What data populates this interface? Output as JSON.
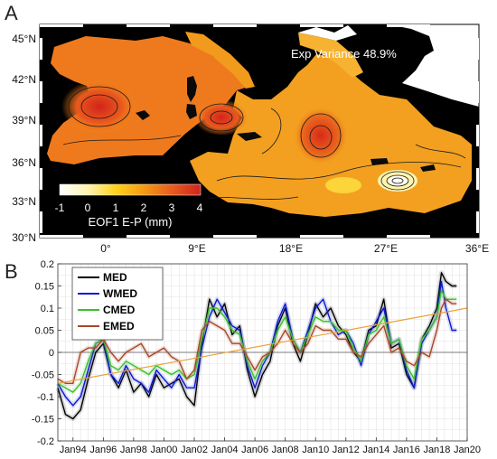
{
  "panels": {
    "a": {
      "letter": "A",
      "variance_label": "Exp Variance 48.9%",
      "colorbar_label": "EOF1 E-P (mm)",
      "colorbar_ticks": [
        "-1",
        "0",
        "1",
        "2",
        "3",
        "4"
      ],
      "lat_ticks": [
        "45°N",
        "42°N",
        "39°N",
        "36°N",
        "33°N",
        "30°N"
      ],
      "lon_ticks": [
        "0°",
        "9°E",
        "18°E",
        "27°E",
        "36°E"
      ],
      "colors": {
        "background": "#000000",
        "land": "#ffffff",
        "colormap": [
          "#ffffff",
          "#fff3b0",
          "#ffd11a",
          "#f59a12",
          "#e85a1e",
          "#d2231b"
        ]
      }
    },
    "b": {
      "letter": "B"
    }
  },
  "chart_data": {
    "type": "line",
    "x_tick_labels": [
      "Jan94",
      "Jan96",
      "Jan98",
      "Jan00",
      "Jan02",
      "Jan04",
      "Jan06",
      "Jan08",
      "Jan10",
      "Jan12",
      "Jan14",
      "Jan16",
      "Jan18",
      "Jan20"
    ],
    "xlim": [
      1993.0,
      2020.0
    ],
    "ylim": [
      -0.2,
      0.2
    ],
    "y_tick_labels": [
      "0.2",
      "0.15",
      "0.1",
      "0.05",
      "0",
      "-0.05",
      "-0.1",
      "-0.15",
      "-0.2"
    ],
    "y_ticks": [
      0.2,
      0.15,
      0.1,
      0.05,
      0,
      -0.05,
      -0.1,
      -0.15,
      -0.2
    ],
    "grid": true,
    "legend_position": "top-left",
    "series": [
      {
        "name": "MED",
        "color": "#000000",
        "x": [
          1993.0,
          1993.5,
          1994.0,
          1994.5,
          1995.0,
          1995.5,
          1996.0,
          1996.5,
          1997.0,
          1997.5,
          1998.0,
          1998.5,
          1999.0,
          1999.5,
          2000.0,
          2000.5,
          2001.0,
          2001.5,
          2002.0,
          2002.5,
          2003.0,
          2003.5,
          2004.0,
          2004.5,
          2005.0,
          2005.5,
          2006.0,
          2006.5,
          2007.0,
          2007.5,
          2008.0,
          2008.5,
          2009.0,
          2009.5,
          2010.0,
          2010.5,
          2011.0,
          2011.5,
          2012.0,
          2012.5,
          2013.0,
          2013.5,
          2014.0,
          2014.5,
          2015.0,
          2015.5,
          2016.0,
          2016.5,
          2017.0,
          2017.5,
          2018.0,
          2018.3,
          2018.6,
          2019.0,
          2019.3
        ],
        "y": [
          -0.08,
          -0.14,
          -0.15,
          -0.13,
          -0.06,
          0.0,
          0.02,
          -0.05,
          -0.08,
          -0.04,
          -0.09,
          -0.07,
          -0.1,
          -0.05,
          -0.08,
          -0.07,
          -0.06,
          -0.1,
          -0.12,
          0.02,
          0.12,
          0.08,
          0.11,
          0.04,
          0.06,
          -0.04,
          -0.1,
          -0.05,
          -0.02,
          0.06,
          0.1,
          0.02,
          -0.02,
          0.04,
          0.11,
          0.08,
          0.1,
          0.06,
          0.04,
          0.0,
          -0.02,
          0.05,
          0.06,
          0.12,
          0.01,
          0.02,
          -0.05,
          -0.08,
          0.03,
          0.06,
          0.1,
          0.18,
          0.16,
          0.15,
          0.15
        ]
      },
      {
        "name": "WMED",
        "color": "#0a17d6",
        "x": [
          1993.0,
          1993.5,
          1994.0,
          1994.5,
          1995.0,
          1995.5,
          1996.0,
          1996.5,
          1997.0,
          1997.5,
          1998.0,
          1998.5,
          1999.0,
          1999.5,
          2000.0,
          2000.5,
          2001.0,
          2001.5,
          2002.0,
          2002.5,
          2003.0,
          2003.5,
          2004.0,
          2004.5,
          2005.0,
          2005.5,
          2006.0,
          2006.5,
          2007.0,
          2007.5,
          2008.0,
          2008.5,
          2009.0,
          2009.5,
          2010.0,
          2010.5,
          2011.0,
          2011.5,
          2012.0,
          2012.5,
          2013.0,
          2013.5,
          2014.0,
          2014.5,
          2015.0,
          2015.5,
          2016.0,
          2016.5,
          2017.0,
          2017.5,
          2018.0,
          2018.3,
          2018.6,
          2019.0,
          2019.3
        ],
        "y": [
          -0.07,
          -0.1,
          -0.12,
          -0.1,
          -0.04,
          0.02,
          0.03,
          -0.05,
          -0.07,
          -0.03,
          -0.06,
          -0.07,
          -0.09,
          -0.04,
          -0.06,
          -0.08,
          -0.05,
          -0.08,
          -0.08,
          0.01,
          0.08,
          0.12,
          0.09,
          0.06,
          0.05,
          -0.03,
          -0.08,
          -0.03,
          0.0,
          0.07,
          0.11,
          0.03,
          0.0,
          0.05,
          0.1,
          0.12,
          0.07,
          0.04,
          0.05,
          0.02,
          -0.03,
          0.04,
          0.07,
          0.1,
          0.02,
          0.03,
          -0.04,
          -0.08,
          0.02,
          0.05,
          0.08,
          0.16,
          0.1,
          0.05,
          0.05
        ]
      },
      {
        "name": "CMED",
        "color": "#3ac12a",
        "x": [
          1993.0,
          1993.5,
          1994.0,
          1994.5,
          1995.0,
          1995.5,
          1996.0,
          1996.5,
          1997.0,
          1997.5,
          1998.0,
          1998.5,
          1999.0,
          1999.5,
          2000.0,
          2000.5,
          2001.0,
          2001.5,
          2002.0,
          2002.5,
          2003.0,
          2003.5,
          2004.0,
          2004.5,
          2005.0,
          2005.5,
          2006.0,
          2006.5,
          2007.0,
          2007.5,
          2008.0,
          2008.5,
          2009.0,
          2009.5,
          2010.0,
          2010.5,
          2011.0,
          2011.5,
          2012.0,
          2012.5,
          2013.0,
          2013.5,
          2014.0,
          2014.5,
          2015.0,
          2015.5,
          2016.0,
          2016.5,
          2017.0,
          2017.5,
          2018.0,
          2018.3,
          2018.6,
          2019.0,
          2019.3
        ],
        "y": [
          -0.07,
          -0.08,
          -0.09,
          -0.07,
          -0.02,
          0.02,
          0.03,
          -0.03,
          -0.04,
          -0.02,
          -0.03,
          -0.04,
          -0.05,
          -0.03,
          -0.04,
          -0.05,
          -0.04,
          -0.06,
          -0.05,
          0.03,
          0.1,
          0.1,
          0.08,
          0.05,
          0.04,
          -0.02,
          -0.06,
          -0.02,
          0.0,
          0.05,
          0.08,
          0.03,
          0.0,
          0.04,
          0.08,
          0.07,
          0.07,
          0.05,
          0.05,
          0.01,
          -0.02,
          0.04,
          0.05,
          0.08,
          0.02,
          0.03,
          -0.03,
          -0.06,
          0.03,
          0.05,
          0.08,
          0.14,
          0.12,
          0.12,
          0.12
        ]
      },
      {
        "name": "EMED",
        "color": "#a8472b",
        "x": [
          1993.0,
          1993.5,
          1994.0,
          1994.5,
          1995.0,
          1995.5,
          1996.0,
          1996.5,
          1997.0,
          1997.5,
          1998.0,
          1998.5,
          1999.0,
          1999.5,
          2000.0,
          2000.5,
          2001.0,
          2001.5,
          2002.0,
          2002.5,
          2003.0,
          2003.5,
          2004.0,
          2004.5,
          2005.0,
          2005.5,
          2006.0,
          2006.5,
          2007.0,
          2007.5,
          2008.0,
          2008.5,
          2009.0,
          2009.5,
          2010.0,
          2010.5,
          2011.0,
          2011.5,
          2012.0,
          2012.5,
          2013.0,
          2013.5,
          2014.0,
          2014.5,
          2015.0,
          2015.5,
          2016.0,
          2016.5,
          2017.0,
          2017.5,
          2018.0,
          2018.3,
          2018.6,
          2019.0,
          2019.3
        ],
        "y": [
          -0.06,
          -0.07,
          -0.07,
          0.0,
          0.01,
          0.01,
          0.03,
          0.0,
          -0.02,
          0.0,
          0.01,
          0.02,
          -0.01,
          0.0,
          0.01,
          -0.01,
          -0.02,
          -0.06,
          -0.04,
          0.05,
          0.07,
          0.06,
          0.05,
          0.02,
          0.02,
          -0.01,
          -0.04,
          -0.01,
          0.0,
          0.02,
          0.05,
          0.02,
          0.0,
          0.02,
          0.06,
          0.05,
          0.05,
          0.03,
          0.03,
          0.0,
          -0.01,
          0.02,
          0.04,
          0.06,
          0.0,
          0.01,
          -0.02,
          -0.03,
          0.0,
          -0.01,
          0.05,
          0.1,
          0.12,
          0.11,
          0.11
        ]
      },
      {
        "name": "",
        "color": "#e8a33a",
        "x": [
          1993.0,
          2020.0
        ],
        "y": [
          -0.07,
          0.1
        ]
      }
    ]
  }
}
